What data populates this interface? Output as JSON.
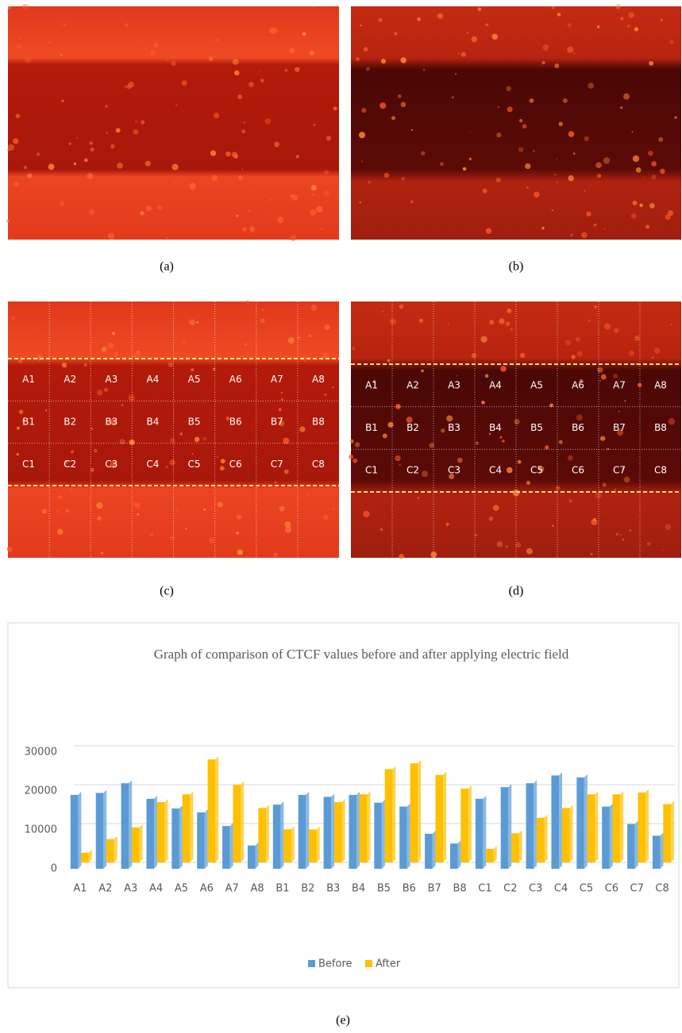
{
  "panels": {
    "a": "(a)",
    "b": "(b)",
    "c": "(c)",
    "d": "(d)",
    "e": "(e)"
  },
  "grid_labels": [
    [
      "A1",
      "A2",
      "A3",
      "A4",
      "A5",
      "A6",
      "A7",
      "A8"
    ],
    [
      "B1",
      "B2",
      "B3",
      "B4",
      "B5",
      "B6",
      "B7",
      "B8"
    ],
    [
      "C1",
      "C2",
      "C3",
      "C4",
      "C5",
      "C6",
      "C7",
      "C8"
    ]
  ],
  "chart_data": {
    "type": "bar",
    "title": "Graph of comparison of CTCF values before and after applying electric field",
    "categories": [
      "A1",
      "A2",
      "A3",
      "A4",
      "A5",
      "A6",
      "A7",
      "A8",
      "B1",
      "B2",
      "B3",
      "B4",
      "B5",
      "B6",
      "B7",
      "B8",
      "C1",
      "C2",
      "C3",
      "C4",
      "C5",
      "C6",
      "C7",
      "C8"
    ],
    "series": [
      {
        "name": "Before",
        "color": "#5b9bd5",
        "values": [
          19000,
          19500,
          22000,
          18000,
          15500,
          14500,
          11000,
          6000,
          16500,
          19000,
          18500,
          19000,
          17000,
          16000,
          9000,
          6500,
          18000,
          21000,
          22000,
          24000,
          23500,
          16000,
          11500,
          8500
        ]
      },
      {
        "name": "After",
        "color": "#ffc000",
        "values": [
          2500,
          6000,
          9000,
          15500,
          17500,
          26500,
          20000,
          14000,
          8500,
          8500,
          15500,
          17500,
          24000,
          25500,
          22500,
          19000,
          3500,
          7500,
          11500,
          14000,
          17500,
          17500,
          18000,
          15000
        ]
      }
    ],
    "ylim": [
      0,
      30000
    ],
    "yticks": [
      0,
      10000,
      20000,
      30000
    ],
    "grid": true,
    "legend": "bottom"
  }
}
